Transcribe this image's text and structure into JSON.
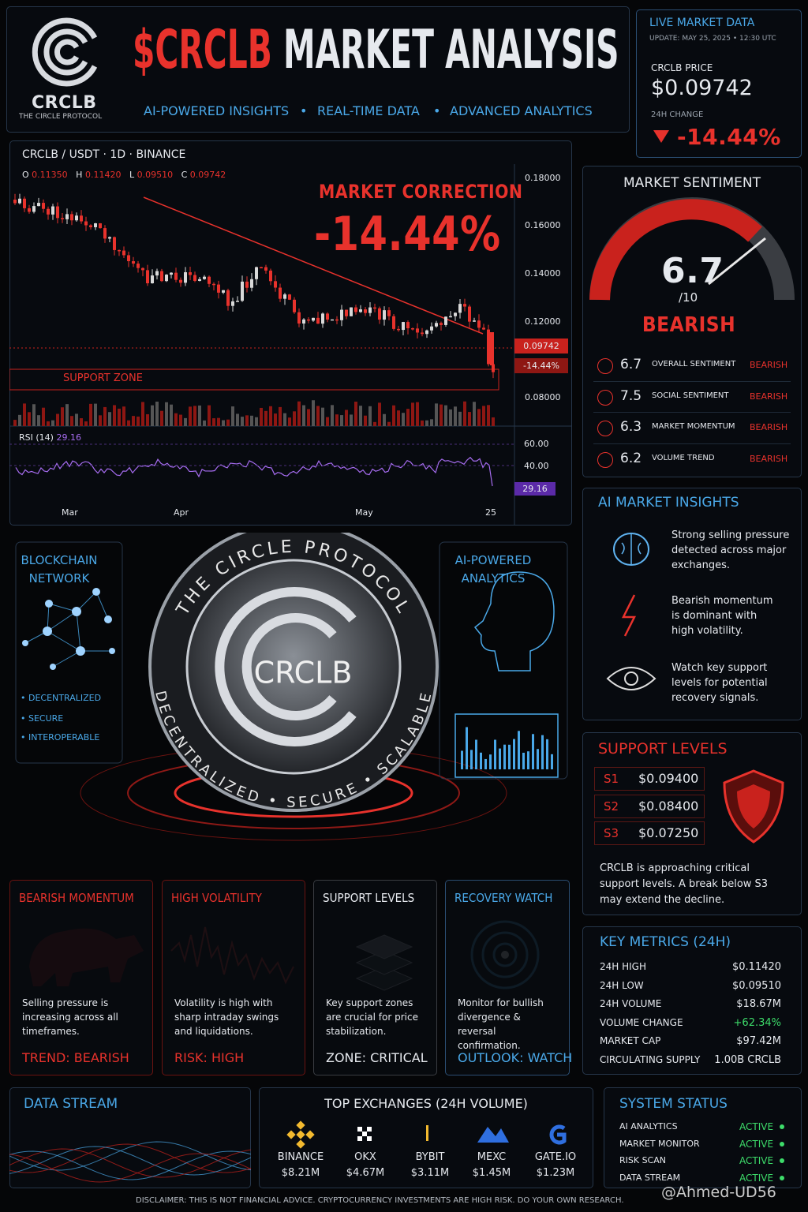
{
  "header": {
    "logo_name": "CRCLB",
    "logo_tagline": "THE CIRCLE PROTOCOL",
    "title_ticker": "$CRCLB",
    "title_rest": "MARKET ANALYSIS",
    "taglines": [
      "AI-POWERED INSIGHTS",
      "REAL-TIME DATA",
      "ADVANCED ANALYTICS"
    ]
  },
  "live": {
    "title": "LIVE MARKET DATA",
    "update": "UPDATE: MAY 25, 2025 • 12:30 UTC",
    "price_label": "CRCLB PRICE",
    "price": "$0.09742",
    "change_label": "24H CHANGE",
    "change": "-14.44%"
  },
  "price_chart": {
    "pair": "CRCLB / USDT · 1D · BINANCE",
    "ohlc": [
      {
        "key": "O",
        "value": "0.11350"
      },
      {
        "key": "H",
        "value": "0.11420"
      },
      {
        "key": "L",
        "value": "0.09510"
      },
      {
        "key": "C",
        "value": "0.09742"
      }
    ],
    "callout_title": "MARKET CORRECTION",
    "callout_value": "-14.44%",
    "yticks": [
      "0.18000",
      "0.16000",
      "0.14000",
      "0.12000",
      "0.08000"
    ],
    "price_tag": "0.09742",
    "change_tag": "-14.44%",
    "support_label": "SUPPORT ZONE",
    "rsi_label": "RSI (14)",
    "rsi_value": "29.16",
    "rsi_ticks": [
      "60.00",
      "40.00"
    ],
    "rsi_tag": "29.16",
    "xlabels": [
      "Mar",
      "Apr",
      "May",
      "25"
    ]
  },
  "sentiment": {
    "title": "MARKET SENTIMENT",
    "score": "6.7",
    "scale": "/10",
    "label": "BEARISH",
    "rows": [
      {
        "score": "6.7",
        "name": "OVERALL SENTIMENT",
        "status": "BEARISH"
      },
      {
        "score": "7.5",
        "name": "SOCIAL SENTIMENT",
        "status": "BEARISH"
      },
      {
        "score": "6.3",
        "name": "MARKET MOMENTUM",
        "status": "BEARISH"
      },
      {
        "score": "6.2",
        "name": "VOLUME TREND",
        "status": "BEARISH"
      }
    ]
  },
  "insights": {
    "title": "AI MARKET INSIGHTS",
    "items": [
      "Strong selling pressure detected across major exchanges.",
      "Bearish momentum is dominant with high volatility.",
      "Watch key support levels for potential recovery signals."
    ]
  },
  "center": {
    "ring_top": "THE CIRCLE PROTOCOL",
    "coin": "CRCLB",
    "ring_bottom": "DECENTRALIZED • SECURE • SCALABLE",
    "network_title": "BLOCKCHAIN NETWORK",
    "network_points": [
      "DECENTRALIZED",
      "SECURE",
      "INTEROPERABLE"
    ],
    "ai_title": "AI-POWERED ANALYTICS"
  },
  "support": {
    "title": "SUPPORT LEVELS",
    "levels": [
      {
        "id": "S1",
        "price": "$0.09400"
      },
      {
        "id": "S2",
        "price": "$0.08400"
      },
      {
        "id": "S3",
        "price": "$0.07250"
      }
    ],
    "note": "CRCLB is approaching critical support levels. A break below S3 may extend the decline."
  },
  "cards": [
    {
      "title": "BEARISH MOMENTUM",
      "text": "Selling pressure is increasing across all timeframes.",
      "footer": "TREND: BEARISH"
    },
    {
      "title": "HIGH VOLATILITY",
      "text": "Volatility is high with sharp intraday swings and liquidations.",
      "footer": "RISK: HIGH"
    },
    {
      "title": "SUPPORT LEVELS",
      "text": "Key support zones are crucial for price stabilization.",
      "footer": "ZONE: CRITICAL"
    },
    {
      "title": "RECOVERY WATCH",
      "text": "Monitor for bullish divergence & reversal confirmation.",
      "footer": "OUTLOOK: WATCH"
    }
  ],
  "metrics": {
    "title": "KEY METRICS (24H)",
    "rows": [
      {
        "label": "24H HIGH",
        "value": "$0.11420"
      },
      {
        "label": "24H LOW",
        "value": "$0.09510"
      },
      {
        "label": "24H VOLUME",
        "value": "$18.67M"
      },
      {
        "label": "VOLUME CHANGE",
        "value": "+62.34%"
      },
      {
        "label": "MARKET CAP",
        "value": "$97.42M"
      },
      {
        "label": "CIRCULATING SUPPLY",
        "value": "1.00B CRCLB"
      }
    ]
  },
  "data_stream": {
    "title": "DATA STREAM"
  },
  "exchanges": {
    "title": "TOP EXCHANGES (24H VOLUME)",
    "items": [
      {
        "name": "BINANCE",
        "volume": "$8.21M"
      },
      {
        "name": "OKX",
        "volume": "$4.67M"
      },
      {
        "name": "BYBIT",
        "volume": "$3.11M"
      },
      {
        "name": "MEXC",
        "volume": "$1.45M"
      },
      {
        "name": "GATE.IO",
        "volume": "$1.23M"
      }
    ]
  },
  "system": {
    "title": "SYSTEM STATUS",
    "rows": [
      {
        "name": "AI ANALYTICS",
        "status": "ACTIVE"
      },
      {
        "name": "MARKET MONITOR",
        "status": "ACTIVE"
      },
      {
        "name": "RISK SCAN",
        "status": "ACTIVE"
      },
      {
        "name": "DATA STREAM",
        "status": "ACTIVE"
      }
    ]
  },
  "disclaimer": "DISCLAIMER: THIS IS NOT FINANCIAL ADVICE. CRYPTOCURRENCY INVESTMENTS ARE HIGH RISK. DO YOUR OWN RESEARCH.",
  "watermark": "@Ahmed-UD56"
}
